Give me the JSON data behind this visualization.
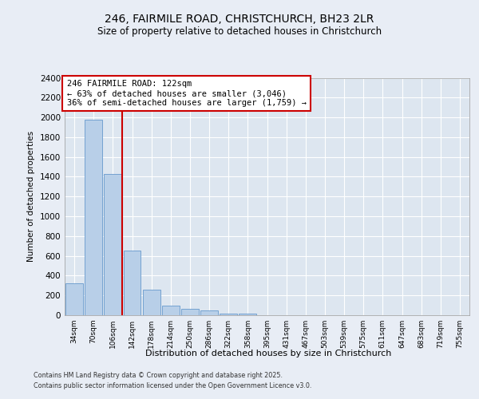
{
  "title_line1": "246, FAIRMILE ROAD, CHRISTCHURCH, BH23 2LR",
  "title_line2": "Size of property relative to detached houses in Christchurch",
  "xlabel": "Distribution of detached houses by size in Christchurch",
  "ylabel": "Number of detached properties",
  "categories": [
    "34sqm",
    "70sqm",
    "106sqm",
    "142sqm",
    "178sqm",
    "214sqm",
    "250sqm",
    "286sqm",
    "322sqm",
    "358sqm",
    "395sqm",
    "431sqm",
    "467sqm",
    "503sqm",
    "539sqm",
    "575sqm",
    "611sqm",
    "647sqm",
    "683sqm",
    "719sqm",
    "755sqm"
  ],
  "values": [
    320,
    1980,
    1430,
    650,
    260,
    100,
    65,
    45,
    20,
    20,
    0,
    0,
    0,
    0,
    0,
    0,
    0,
    0,
    0,
    0,
    0
  ],
  "bar_color": "#b8cfe8",
  "bar_edge_color": "#6699cc",
  "background_color": "#dde6f0",
  "grid_color": "#ffffff",
  "vline_x": 2.5,
  "vline_color": "#cc0000",
  "annotation_text": "246 FAIRMILE ROAD: 122sqm\n← 63% of detached houses are smaller (3,046)\n36% of semi-detached houses are larger (1,759) →",
  "annotation_box_color": "#cc0000",
  "ylim": [
    0,
    2400
  ],
  "yticks": [
    0,
    200,
    400,
    600,
    800,
    1000,
    1200,
    1400,
    1600,
    1800,
    2000,
    2200,
    2400
  ],
  "fig_bg": "#e8edf5",
  "footer_line1": "Contains HM Land Registry data © Crown copyright and database right 2025.",
  "footer_line2": "Contains public sector information licensed under the Open Government Licence v3.0."
}
